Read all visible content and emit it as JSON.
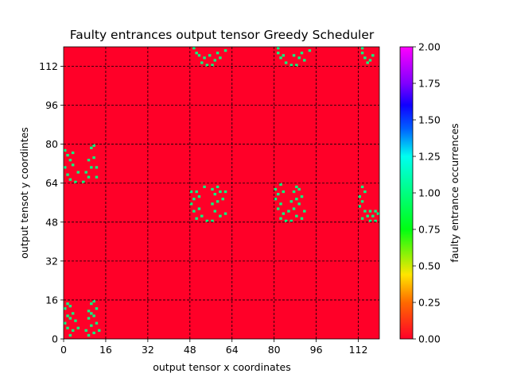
{
  "chart_data": {
    "type": "heatmap",
    "title": "Faulty entrances output tensor Greedy Scheduler",
    "xlabel": "output tensor x coordinates",
    "ylabel": "output tensot y coordintes",
    "xlim": [
      0,
      120
    ],
    "ylim": [
      0,
      120
    ],
    "xticks": [
      "0",
      "16",
      "32",
      "48",
      "64",
      "80",
      "96",
      "112"
    ],
    "yticks": [
      "0",
      "16",
      "32",
      "48",
      "64",
      "80",
      "96",
      "112"
    ],
    "xtick_values": [
      0,
      16,
      32,
      48,
      64,
      80,
      96,
      112
    ],
    "ytick_values": [
      0,
      16,
      32,
      48,
      64,
      80,
      96,
      112
    ],
    "grid": true,
    "background_value": 0,
    "colormap": "gist_rainbow_r",
    "colors": {
      "zero": "#ff0028",
      "one": "#00ff80",
      "two": "#ff00ff"
    },
    "colorbar": {
      "label": "faulty entrance occurrences",
      "min": 0,
      "max": 2,
      "ticks": [
        "0.00",
        "0.25",
        "0.50",
        "0.75",
        "1.00",
        "1.25",
        "1.50",
        "1.75",
        "2.00"
      ],
      "tick_values": [
        0,
        0.25,
        0.5,
        0.75,
        1,
        1.25,
        1.5,
        1.75,
        2
      ]
    },
    "cells": [
      {
        "x": 2,
        "y": 1,
        "v": 1
      },
      {
        "x": 3,
        "y": 3,
        "v": 1
      },
      {
        "x": 1,
        "y": 4,
        "v": 1
      },
      {
        "x": 5,
        "y": 4,
        "v": 1
      },
      {
        "x": 0,
        "y": 6,
        "v": 1
      },
      {
        "x": 4,
        "y": 7,
        "v": 1
      },
      {
        "x": 2,
        "y": 8,
        "v": 1
      },
      {
        "x": 1,
        "y": 9,
        "v": 1
      },
      {
        "x": 3,
        "y": 10,
        "v": 1
      },
      {
        "x": 0,
        "y": 12,
        "v": 1
      },
      {
        "x": 2,
        "y": 13,
        "v": 1
      },
      {
        "x": 1,
        "y": 14,
        "v": 1
      },
      {
        "x": 9,
        "y": 1,
        "v": 1
      },
      {
        "x": 11,
        "y": 2,
        "v": 1
      },
      {
        "x": 8,
        "y": 3,
        "v": 1
      },
      {
        "x": 13,
        "y": 3,
        "v": 1
      },
      {
        "x": 10,
        "y": 5,
        "v": 1
      },
      {
        "x": 12,
        "y": 6,
        "v": 1
      },
      {
        "x": 9,
        "y": 8,
        "v": 1
      },
      {
        "x": 11,
        "y": 9,
        "v": 1
      },
      {
        "x": 10,
        "y": 10,
        "v": 1
      },
      {
        "x": 9,
        "y": 11,
        "v": 1
      },
      {
        "x": 12,
        "y": 12,
        "v": 1
      },
      {
        "x": 10,
        "y": 14,
        "v": 1
      },
      {
        "x": 11,
        "y": 15,
        "v": 1
      },
      {
        "x": 2,
        "y": 65,
        "v": 1
      },
      {
        "x": 4,
        "y": 64,
        "v": 1
      },
      {
        "x": 1,
        "y": 67,
        "v": 1
      },
      {
        "x": 5,
        "y": 68,
        "v": 1
      },
      {
        "x": 0,
        "y": 70,
        "v": 1
      },
      {
        "x": 3,
        "y": 71,
        "v": 1
      },
      {
        "x": 2,
        "y": 73,
        "v": 1
      },
      {
        "x": 1,
        "y": 75,
        "v": 1
      },
      {
        "x": 3,
        "y": 76,
        "v": 1
      },
      {
        "x": 0,
        "y": 77,
        "v": 1
      },
      {
        "x": 7,
        "y": 64,
        "v": 1
      },
      {
        "x": 9,
        "y": 66,
        "v": 1
      },
      {
        "x": 12,
        "y": 66,
        "v": 1
      },
      {
        "x": 8,
        "y": 68,
        "v": 1
      },
      {
        "x": 10,
        "y": 70,
        "v": 1
      },
      {
        "x": 12,
        "y": 70,
        "v": 1
      },
      {
        "x": 9,
        "y": 73,
        "v": 1
      },
      {
        "x": 11,
        "y": 74,
        "v": 1
      },
      {
        "x": 10,
        "y": 78,
        "v": 1
      },
      {
        "x": 11,
        "y": 79,
        "v": 1
      },
      {
        "x": 50,
        "y": 49,
        "v": 1
      },
      {
        "x": 52,
        "y": 50,
        "v": 1
      },
      {
        "x": 54,
        "y": 48,
        "v": 1
      },
      {
        "x": 49,
        "y": 52,
        "v": 1
      },
      {
        "x": 51,
        "y": 53,
        "v": 1
      },
      {
        "x": 48,
        "y": 55,
        "v": 1
      },
      {
        "x": 49,
        "y": 57,
        "v": 1
      },
      {
        "x": 51,
        "y": 58,
        "v": 1
      },
      {
        "x": 48,
        "y": 60,
        "v": 1
      },
      {
        "x": 50,
        "y": 60,
        "v": 1
      },
      {
        "x": 53,
        "y": 62,
        "v": 1
      },
      {
        "x": 56,
        "y": 48,
        "v": 1
      },
      {
        "x": 59,
        "y": 50,
        "v": 1
      },
      {
        "x": 57,
        "y": 52,
        "v": 1
      },
      {
        "x": 61,
        "y": 51,
        "v": 1
      },
      {
        "x": 56,
        "y": 55,
        "v": 1
      },
      {
        "x": 58,
        "y": 56,
        "v": 1
      },
      {
        "x": 60,
        "y": 57,
        "v": 1
      },
      {
        "x": 57,
        "y": 59,
        "v": 1
      },
      {
        "x": 59,
        "y": 60,
        "v": 1
      },
      {
        "x": 56,
        "y": 61,
        "v": 1
      },
      {
        "x": 58,
        "y": 62,
        "v": 1
      },
      {
        "x": 61,
        "y": 60,
        "v": 1
      },
      {
        "x": 82,
        "y": 49,
        "v": 1
      },
      {
        "x": 84,
        "y": 48,
        "v": 1
      },
      {
        "x": 83,
        "y": 51,
        "v": 1
      },
      {
        "x": 81,
        "y": 53,
        "v": 1
      },
      {
        "x": 82,
        "y": 55,
        "v": 1
      },
      {
        "x": 80,
        "y": 57,
        "v": 1
      },
      {
        "x": 81,
        "y": 59,
        "v": 1
      },
      {
        "x": 83,
        "y": 60,
        "v": 1
      },
      {
        "x": 80,
        "y": 61,
        "v": 1
      },
      {
        "x": 82,
        "y": 63,
        "v": 1
      },
      {
        "x": 86,
        "y": 48,
        "v": 1
      },
      {
        "x": 88,
        "y": 50,
        "v": 1
      },
      {
        "x": 90,
        "y": 49,
        "v": 1
      },
      {
        "x": 85,
        "y": 52,
        "v": 1
      },
      {
        "x": 87,
        "y": 53,
        "v": 1
      },
      {
        "x": 91,
        "y": 52,
        "v": 1
      },
      {
        "x": 89,
        "y": 55,
        "v": 1
      },
      {
        "x": 86,
        "y": 56,
        "v": 1
      },
      {
        "x": 88,
        "y": 57,
        "v": 1
      },
      {
        "x": 90,
        "y": 58,
        "v": 1
      },
      {
        "x": 87,
        "y": 60,
        "v": 1
      },
      {
        "x": 89,
        "y": 61,
        "v": 1
      },
      {
        "x": 88,
        "y": 62,
        "v": 1
      },
      {
        "x": 113,
        "y": 49,
        "v": 1
      },
      {
        "x": 115,
        "y": 50,
        "v": 1
      },
      {
        "x": 114,
        "y": 52,
        "v": 1
      },
      {
        "x": 112,
        "y": 54,
        "v": 1
      },
      {
        "x": 113,
        "y": 56,
        "v": 1
      },
      {
        "x": 112,
        "y": 58,
        "v": 1
      },
      {
        "x": 114,
        "y": 60,
        "v": 1
      },
      {
        "x": 113,
        "y": 62,
        "v": 1
      },
      {
        "x": 116,
        "y": 48,
        "v": 1
      },
      {
        "x": 118,
        "y": 48,
        "v": 1
      },
      {
        "x": 117,
        "y": 50,
        "v": 1
      },
      {
        "x": 119,
        "y": 51,
        "v": 1
      },
      {
        "x": 116,
        "y": 52,
        "v": 1
      },
      {
        "x": 118,
        "y": 52,
        "v": 1
      },
      {
        "x": 50,
        "y": 117,
        "v": 1
      },
      {
        "x": 52,
        "y": 113,
        "v": 1
      },
      {
        "x": 53,
        "y": 115,
        "v": 1
      },
      {
        "x": 51,
        "y": 116,
        "v": 1
      },
      {
        "x": 49,
        "y": 119,
        "v": 1
      },
      {
        "x": 54,
        "y": 112,
        "v": 1
      },
      {
        "x": 55,
        "y": 116,
        "v": 1
      },
      {
        "x": 56,
        "y": 112,
        "v": 1
      },
      {
        "x": 57,
        "y": 114,
        "v": 1
      },
      {
        "x": 58,
        "y": 117,
        "v": 1
      },
      {
        "x": 59,
        "y": 115,
        "v": 1
      },
      {
        "x": 61,
        "y": 118,
        "v": 1
      },
      {
        "x": 81,
        "y": 117,
        "v": 1
      },
      {
        "x": 82,
        "y": 115,
        "v": 1
      },
      {
        "x": 84,
        "y": 113,
        "v": 1
      },
      {
        "x": 83,
        "y": 116,
        "v": 1
      },
      {
        "x": 81,
        "y": 119,
        "v": 1
      },
      {
        "x": 86,
        "y": 112,
        "v": 1
      },
      {
        "x": 87,
        "y": 116,
        "v": 1
      },
      {
        "x": 88,
        "y": 112,
        "v": 1
      },
      {
        "x": 89,
        "y": 115,
        "v": 1
      },
      {
        "x": 90,
        "y": 117,
        "v": 1
      },
      {
        "x": 91,
        "y": 114,
        "v": 1
      },
      {
        "x": 93,
        "y": 118,
        "v": 1
      },
      {
        "x": 113,
        "y": 117,
        "v": 1
      },
      {
        "x": 114,
        "y": 115,
        "v": 1
      },
      {
        "x": 113,
        "y": 119,
        "v": 1
      },
      {
        "x": 115,
        "y": 113,
        "v": 1
      },
      {
        "x": 116,
        "y": 114,
        "v": 1
      },
      {
        "x": 117,
        "y": 116,
        "v": 1
      }
    ]
  }
}
